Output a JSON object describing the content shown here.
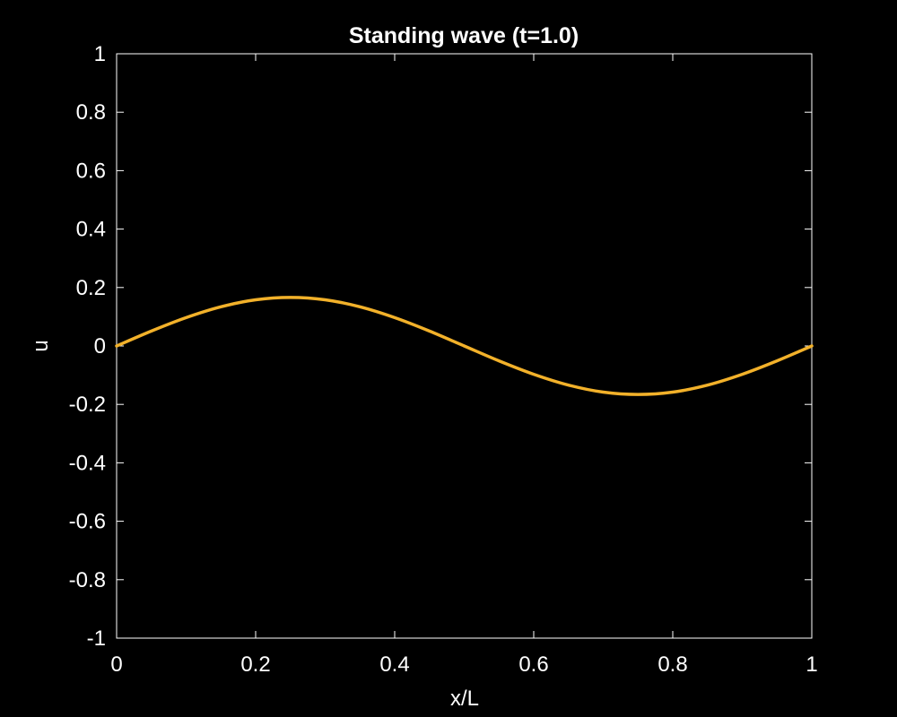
{
  "chart_data": {
    "type": "line",
    "title": "Standing wave (t=1.0)",
    "xlabel": "x/L",
    "ylabel": "u",
    "xlim": [
      0,
      1
    ],
    "ylim": [
      -1,
      1
    ],
    "x_ticks": [
      0,
      0.2,
      0.4,
      0.6,
      0.8,
      1
    ],
    "x_tick_labels": [
      "0",
      "0.2",
      "0.4",
      "0.6",
      "0.8",
      "1"
    ],
    "y_ticks": [
      -1,
      -0.8,
      -0.6,
      -0.4,
      -0.2,
      0,
      0.2,
      0.4,
      0.6,
      0.8,
      1
    ],
    "y_tick_labels": [
      "-1",
      "-0.8",
      "-0.6",
      "-0.4",
      "-0.2",
      "0",
      "0.2",
      "0.4",
      "0.6",
      "0.8",
      "1"
    ],
    "grid": false,
    "legend": "none",
    "colors": {
      "background": "#000000",
      "axes": "#ffffff",
      "text": "#ffffff",
      "series": "#f2b12a"
    },
    "series": [
      {
        "x": [
          0,
          0.05,
          0.1,
          0.15,
          0.2,
          0.25,
          0.3,
          0.35,
          0.4,
          0.45,
          0.5,
          0.55,
          0.6,
          0.65,
          0.7,
          0.75,
          0.8,
          0.85,
          0.9,
          0.95,
          1
        ],
        "values": [
          0,
          0.051,
          0.097,
          0.134,
          0.158,
          0.166,
          0.158,
          0.134,
          0.097,
          0.051,
          0,
          -0.051,
          -0.097,
          -0.134,
          -0.158,
          -0.166,
          -0.158,
          -0.134,
          -0.097,
          -0.051,
          0
        ]
      }
    ]
  }
}
